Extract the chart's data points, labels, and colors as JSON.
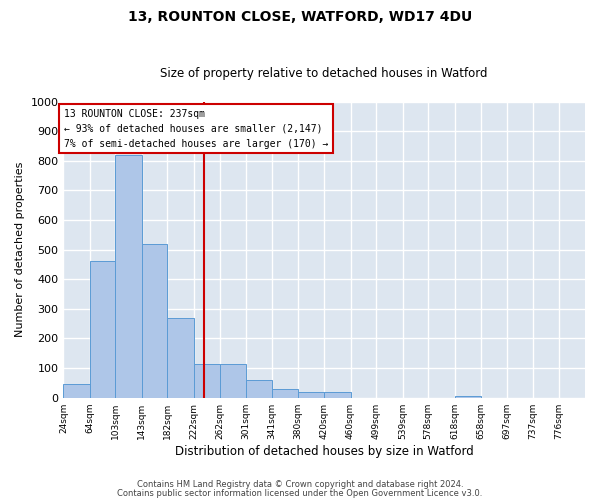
{
  "title_line1": "13, ROUNTON CLOSE, WATFORD, WD17 4DU",
  "title_line2": "Size of property relative to detached houses in Watford",
  "xlabel": "Distribution of detached houses by size in Watford",
  "ylabel": "Number of detached properties",
  "footer_line1": "Contains HM Land Registry data © Crown copyright and database right 2024.",
  "footer_line2": "Contains public sector information licensed under the Open Government Licence v3.0.",
  "property_label": "13 ROUNTON CLOSE: 237sqm",
  "annotation_line1": "← 93% of detached houses are smaller (2,147)",
  "annotation_line2": "7% of semi-detached houses are larger (170) →",
  "property_size": 237,
  "bin_edges": [
    24,
    64,
    103,
    143,
    182,
    222,
    262,
    301,
    341,
    380,
    420,
    460,
    499,
    539,
    578,
    618,
    658,
    697,
    737,
    776,
    816
  ],
  "bar_heights": [
    45,
    460,
    820,
    520,
    270,
    115,
    115,
    60,
    30,
    20,
    20,
    0,
    0,
    0,
    0,
    5,
    0,
    0,
    0,
    0
  ],
  "bar_color": "#aec6e8",
  "bar_edgecolor": "#5b9bd5",
  "vline_color": "#cc0000",
  "vline_x": 237,
  "ylim": [
    0,
    1000
  ],
  "yticks": [
    0,
    100,
    200,
    300,
    400,
    500,
    600,
    700,
    800,
    900,
    1000
  ],
  "annotation_box_color": "#cc0000",
  "bg_color": "#dde6f0",
  "grid_color": "#ffffff"
}
